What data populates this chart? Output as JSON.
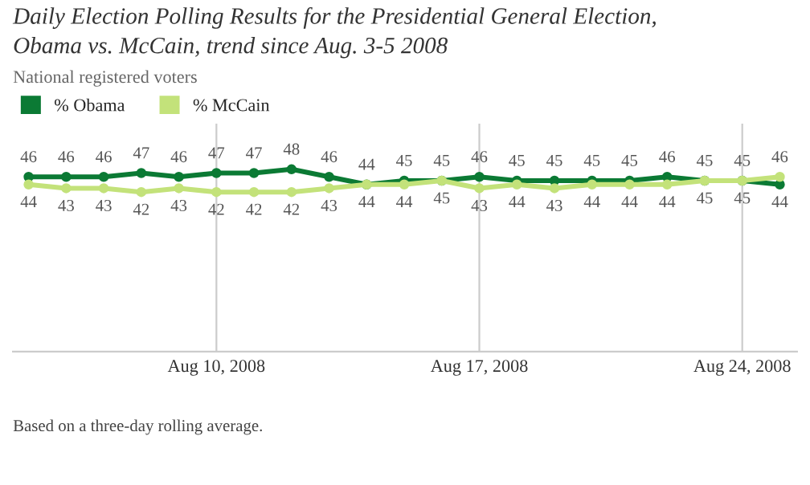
{
  "chart_data": {
    "type": "line",
    "title": "Daily Election Polling Results for the Presidential General Election,\nObama vs. McCain, trend since Aug. 3-5 2008",
    "subtitle": "National registered voters",
    "x": [
      "2008-08-05",
      "2008-08-06",
      "2008-08-07",
      "2008-08-08",
      "2008-08-09",
      "2008-08-10",
      "2008-08-11",
      "2008-08-12",
      "2008-08-13",
      "2008-08-14",
      "2008-08-15",
      "2008-08-16",
      "2008-08-17",
      "2008-08-18",
      "2008-08-19",
      "2008-08-20",
      "2008-08-21",
      "2008-08-22",
      "2008-08-23",
      "2008-08-24",
      "2008-08-25"
    ],
    "series": [
      {
        "name": "% Obama",
        "color": "#0b7a34",
        "values": [
          46,
          46,
          46,
          47,
          46,
          47,
          47,
          48,
          46,
          44,
          45,
          45,
          46,
          45,
          45,
          45,
          45,
          46,
          45,
          45,
          44
        ]
      },
      {
        "name": "% McCain",
        "color": "#c3e27a",
        "values": [
          44,
          43,
          43,
          42,
          43,
          42,
          42,
          42,
          43,
          44,
          44,
          45,
          43,
          44,
          43,
          44,
          44,
          44,
          45,
          45,
          46
        ]
      }
    ],
    "ylim": [
      0,
      60
    ],
    "xlim": [
      "2008-08-04T14:00",
      "2008-08-25T11:00"
    ],
    "xticks": [
      {
        "value": "2008-08-10",
        "label": "Aug 10, 2008"
      },
      {
        "value": "2008-08-17",
        "label": "Aug 17, 2008"
      },
      {
        "value": "2008-08-24",
        "label": "Aug 24, 2008"
      }
    ],
    "tick_labels": "x",
    "grid": "x",
    "legend": "top left",
    "marker": "circle",
    "line_style": "solid",
    "data_labels": true,
    "annotations": [
      "Based on a three-day rolling average."
    ]
  }
}
